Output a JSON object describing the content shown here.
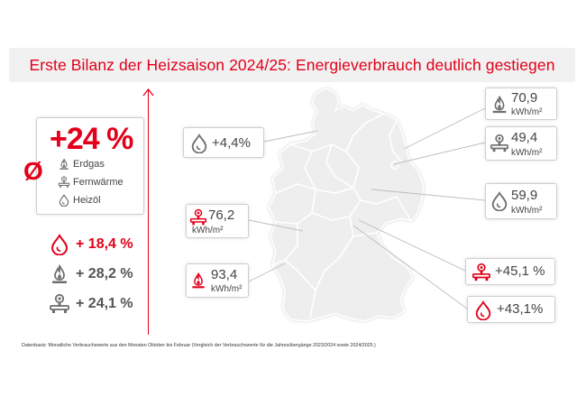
{
  "title": "Erste Bilanz der Heizsaison 2024/25: Energieverbrauch deutlich gestiegen",
  "average": {
    "symbol": "Ø",
    "value": "+24 %",
    "legend": [
      {
        "icon": "gas-flame-icon",
        "label": "Erdgas"
      },
      {
        "icon": "district-heating-icon",
        "label": "Fernwärme"
      },
      {
        "icon": "oil-drop-icon",
        "label": "Heizöl"
      }
    ]
  },
  "national_changes": [
    {
      "icon": "oil-drop-icon",
      "value": "+ 18,4 %",
      "highlight": true
    },
    {
      "icon": "gas-flame-icon",
      "value": "+ 28,2 %",
      "highlight": false
    },
    {
      "icon": "district-heating-icon",
      "value": "+ 24,1 %",
      "highlight": false
    }
  ],
  "callouts": {
    "north_west": {
      "icon": "oil-drop-icon",
      "value": "+4,4%",
      "unit": ""
    },
    "north_east_gas": {
      "icon": "gas-flame-icon",
      "value": "70,9",
      "unit": "kWh/m²"
    },
    "east_district": {
      "icon": "district-heating-icon",
      "value": "49,4",
      "unit": "kWh/m²"
    },
    "east_oil": {
      "icon": "oil-drop-icon",
      "value": "59,9",
      "unit": "kWh/m²"
    },
    "west_district": {
      "icon": "district-heating-icon",
      "value": "76,2",
      "unit": "kWh/m²"
    },
    "south_west_gas": {
      "icon": "gas-flame-icon",
      "value": "93,4",
      "unit": "kWh/m²"
    },
    "south_district": {
      "icon": "district-heating-icon",
      "value": "+45,1 %",
      "unit": ""
    },
    "south_oil": {
      "icon": "oil-drop-icon",
      "value": "+43,1%",
      "unit": ""
    }
  },
  "colors": {
    "accent": "#e2001a",
    "gray_icon": "#6f6f6f",
    "map_fill": "#eeeeee",
    "panel": "#f1f1f1"
  },
  "footnote": "Datenbasis: Monatliche Verbrauchswerte aus den Monaten Oktober bis Februar (Vergleich der Verbrauchswerte für die Jahresübergänge 2023/2024 sowie 2024/2025.)"
}
